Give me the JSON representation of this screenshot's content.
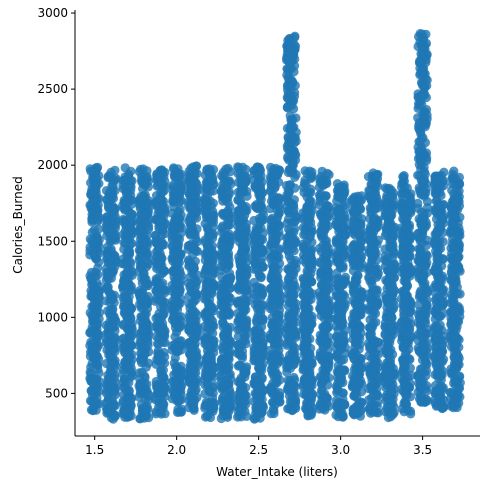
{
  "chart_data": {
    "type": "scatter",
    "title": "",
    "xlabel": "Water_Intake (liters)",
    "ylabel": "Calories_Burned",
    "xlim": [
      1.38,
      3.85
    ],
    "ylim": [
      220,
      3020
    ],
    "xticks": [
      1.5,
      2.0,
      2.5,
      3.0,
      3.5
    ],
    "xtick_labels": [
      "1.5",
      "2.0",
      "2.5",
      "3.0",
      "3.5"
    ],
    "yticks": [
      500,
      1000,
      1500,
      2000,
      2500,
      3000
    ],
    "ytick_labels": [
      "500",
      "1000",
      "1500",
      "2000",
      "2500",
      "3000"
    ],
    "grid": false,
    "legend": "none",
    "marker_color": "#1f77b4",
    "x_values": [
      1.5,
      1.6,
      1.7,
      1.8,
      1.9,
      2.0,
      2.1,
      2.2,
      2.3,
      2.4,
      2.5,
      2.6,
      2.7,
      2.8,
      2.9,
      3.0,
      3.1,
      3.2,
      3.3,
      3.4,
      3.5,
      3.6,
      3.7
    ],
    "y_range_per_x": [
      [
        380,
        1990
      ],
      [
        330,
        1970
      ],
      [
        340,
        1990
      ],
      [
        330,
        1980
      ],
      [
        360,
        1970
      ],
      [
        370,
        1990
      ],
      [
        380,
        2000
      ],
      [
        340,
        1980
      ],
      [
        330,
        1980
      ],
      [
        340,
        1990
      ],
      [
        330,
        1990
      ],
      [
        360,
        1990
      ],
      [
        370,
        2860
      ],
      [
        340,
        1980
      ],
      [
        370,
        1960
      ],
      [
        340,
        1880
      ],
      [
        350,
        1800
      ],
      [
        350,
        1950
      ],
      [
        340,
        1870
      ],
      [
        360,
        1960
      ],
      [
        440,
        2880
      ],
      [
        400,
        1970
      ],
      [
        390,
        1980
      ]
    ]
  }
}
